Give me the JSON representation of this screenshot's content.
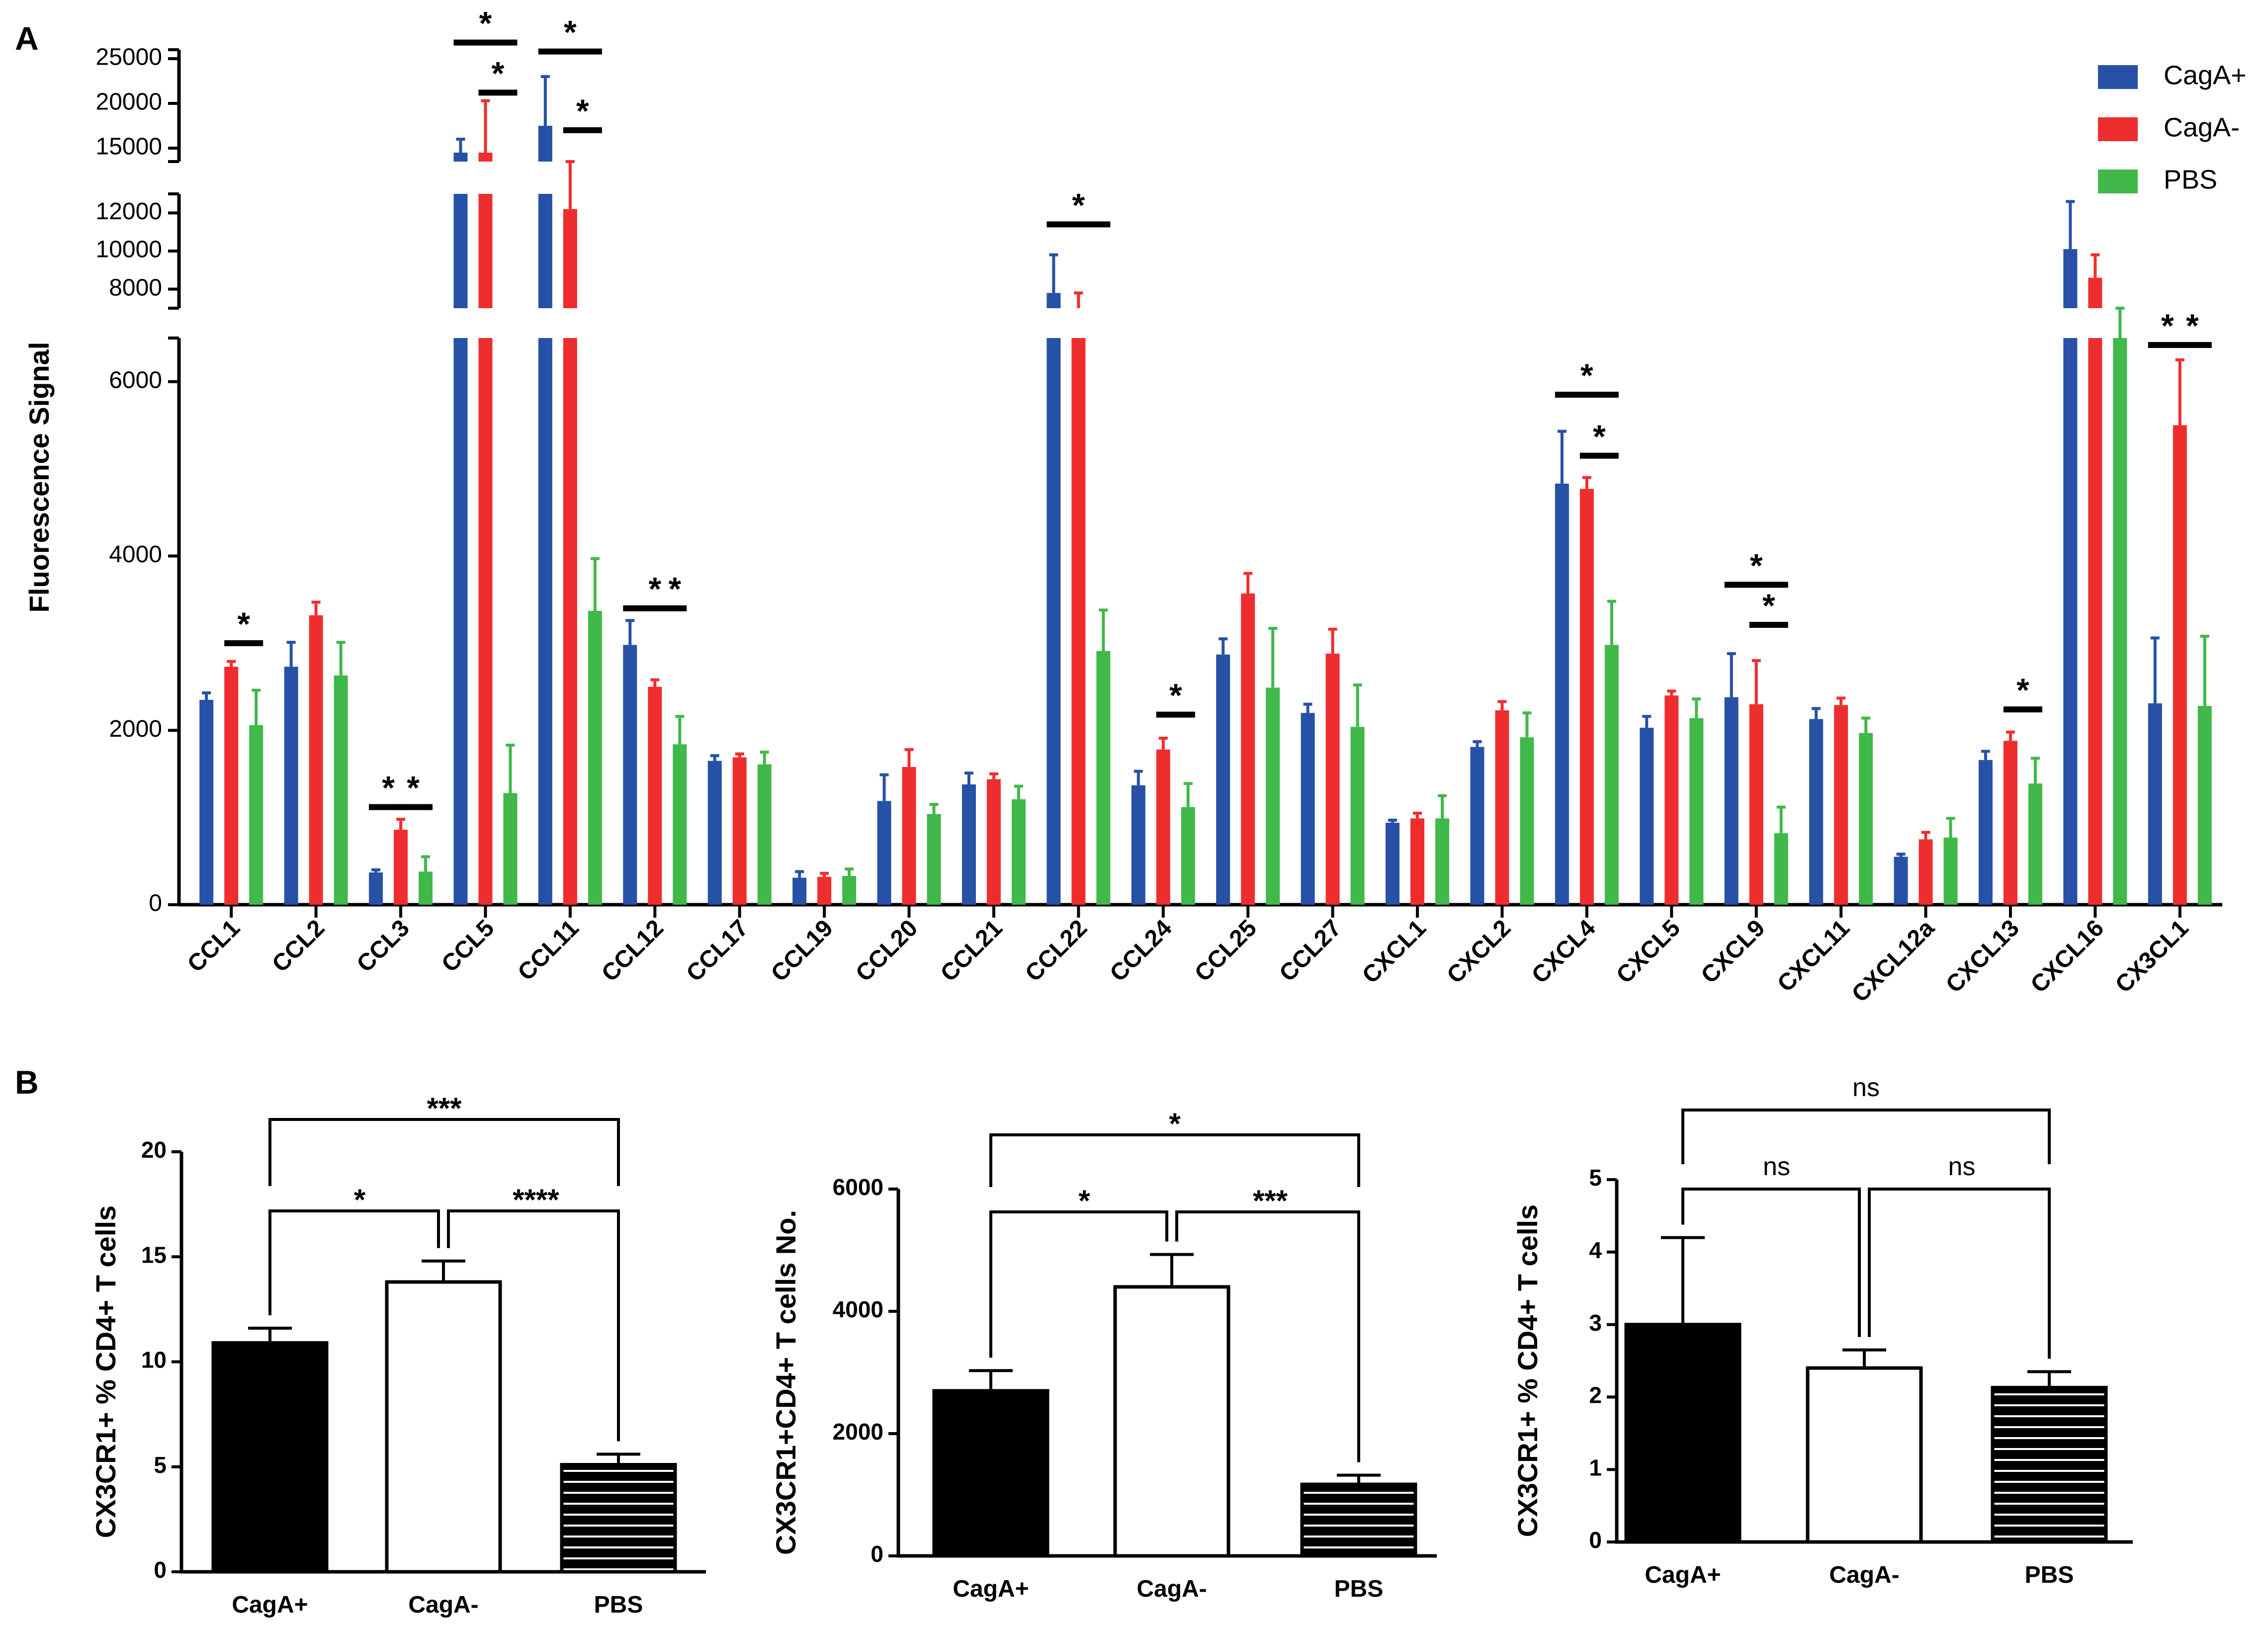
{
  "chart_data": [
    {
      "panel": "A",
      "type": "bar",
      "title": "",
      "ylabel": "Fluorescence Signal",
      "xlabel": "",
      "y_axis_segments": [
        {
          "range": [
            0,
            6500
          ],
          "ticks": [
            0,
            2000,
            4000,
            6000
          ]
        },
        {
          "range": [
            7000,
            13000
          ],
          "ticks": [
            8000,
            10000,
            12000
          ]
        },
        {
          "range": [
            13500,
            26000
          ],
          "ticks": [
            15000,
            20000,
            25000
          ]
        }
      ],
      "categories": [
        "CCL1",
        "CCL2",
        "CCL3",
        "CCL5",
        "CCL11",
        "CCL12",
        "CCL17",
        "CCL19",
        "CCL20",
        "CCL21",
        "CCL22",
        "CCL24",
        "CCL25",
        "CCL27",
        "CXCL1",
        "CXCL2",
        "CXCL4",
        "CXCL5",
        "CXCL9",
        "CXCL11",
        "CXCL12a",
        "CXCL13",
        "CXCL16",
        "CX3CL1"
      ],
      "legend_position": "top-right",
      "series": [
        {
          "name": "CagA+",
          "color": "#2651a6",
          "values": [
            2350,
            2730,
            370,
            14500,
            17500,
            2980,
            1650,
            310,
            1190,
            1380,
            7800,
            1370,
            2870,
            2200,
            940,
            1810,
            4830,
            2030,
            2380,
            2130,
            550,
            1660,
            10100,
            2310
          ],
          "errors": [
            80,
            280,
            30,
            1500,
            5500,
            280,
            60,
            70,
            300,
            130,
            2000,
            160,
            180,
            100,
            30,
            60,
            600,
            130,
            500,
            120,
            30,
            100,
            2500,
            750
          ]
        },
        {
          "name": "CagA-",
          "color": "#ee2e2e",
          "values": [
            2730,
            3320,
            860,
            14500,
            12200,
            2500,
            1690,
            320,
            1580,
            1440,
            7000,
            1780,
            3570,
            2880,
            990,
            2230,
            4770,
            2400,
            2300,
            2290,
            750,
            1880,
            8600,
            5500
          ],
          "errors": [
            60,
            150,
            120,
            5800,
            1000,
            80,
            40,
            40,
            200,
            60,
            800,
            130,
            230,
            280,
            60,
            100,
            130,
            50,
            500,
            80,
            80,
            100,
            1200,
            750
          ]
        },
        {
          "name": "PBS",
          "color": "#40b84a",
          "values": [
            2060,
            2630,
            380,
            1280,
            3370,
            1840,
            1610,
            330,
            1040,
            1210,
            2910,
            1120,
            2490,
            2040,
            990,
            1920,
            2980,
            2140,
            820,
            1970,
            770,
            1390,
            6500,
            2280
          ],
          "errors": [
            400,
            380,
            170,
            550,
            600,
            320,
            140,
            80,
            110,
            150,
            470,
            270,
            680,
            480,
            260,
            280,
            500,
            220,
            300,
            170,
            220,
            290,
            300,
            800
          ]
        }
      ],
      "annotations": [
        "*",
        "*",
        "*",
        "*",
        "*",
        "*",
        "*",
        "*",
        "*",
        "*",
        "*",
        "*",
        "*",
        "*",
        "*",
        "*",
        "*",
        "*",
        "*",
        "*",
        "*",
        "*",
        "*",
        "*"
      ]
    },
    {
      "panel": "B",
      "type": "bar",
      "ylabel": "CX3CR1+ % CD4+ T cells",
      "ylim": [
        0,
        20
      ],
      "yticks": [
        "0",
        "5",
        "10",
        "15",
        "20"
      ],
      "categories": [
        "CagA+",
        "CagA-",
        "PBS"
      ],
      "values": [
        10.9,
        13.8,
        5.1
      ],
      "errors": [
        0.7,
        1.0,
        0.5
      ],
      "fills": [
        "solid",
        "open",
        "striped"
      ],
      "comparisons": [
        {
          "pair": [
            0,
            1
          ],
          "label": "*"
        },
        {
          "pair": [
            1,
            2
          ],
          "label": "****"
        },
        {
          "pair": [
            0,
            2
          ],
          "label": "***"
        }
      ]
    },
    {
      "panel": "B",
      "type": "bar",
      "ylabel": "CX3CR1+CD4+ T cells No.",
      "ylim": [
        0,
        6000
      ],
      "yticks": [
        "0",
        "2000",
        "4000",
        "6000"
      ],
      "categories": [
        "CagA+",
        "CagA-",
        "PBS"
      ],
      "values": [
        2700,
        4400,
        1170
      ],
      "errors": [
        330,
        530,
        150
      ],
      "fills": [
        "solid",
        "open",
        "striped"
      ],
      "comparisons": [
        {
          "pair": [
            0,
            1
          ],
          "label": "*"
        },
        {
          "pair": [
            1,
            2
          ],
          "label": "***"
        },
        {
          "pair": [
            0,
            2
          ],
          "label": "*"
        }
      ]
    },
    {
      "panel": "B",
      "type": "bar",
      "ylabel": "CX3CR1+ % CD4+ T cells",
      "ylim": [
        0,
        5
      ],
      "yticks": [
        "0",
        "1",
        "2",
        "3",
        "4",
        "5"
      ],
      "categories": [
        "CagA+",
        "CagA-",
        "PBS"
      ],
      "values": [
        3.0,
        2.4,
        2.13
      ],
      "errors": [
        1.2,
        0.25,
        0.22
      ],
      "fills": [
        "solid",
        "open",
        "striped"
      ],
      "comparisons": [
        {
          "pair": [
            0,
            1
          ],
          "label": "ns"
        },
        {
          "pair": [
            1,
            2
          ],
          "label": "ns"
        },
        {
          "pair": [
            0,
            2
          ],
          "label": "ns"
        }
      ]
    }
  ],
  "panel_labels": {
    "a": "A",
    "b": "B"
  }
}
